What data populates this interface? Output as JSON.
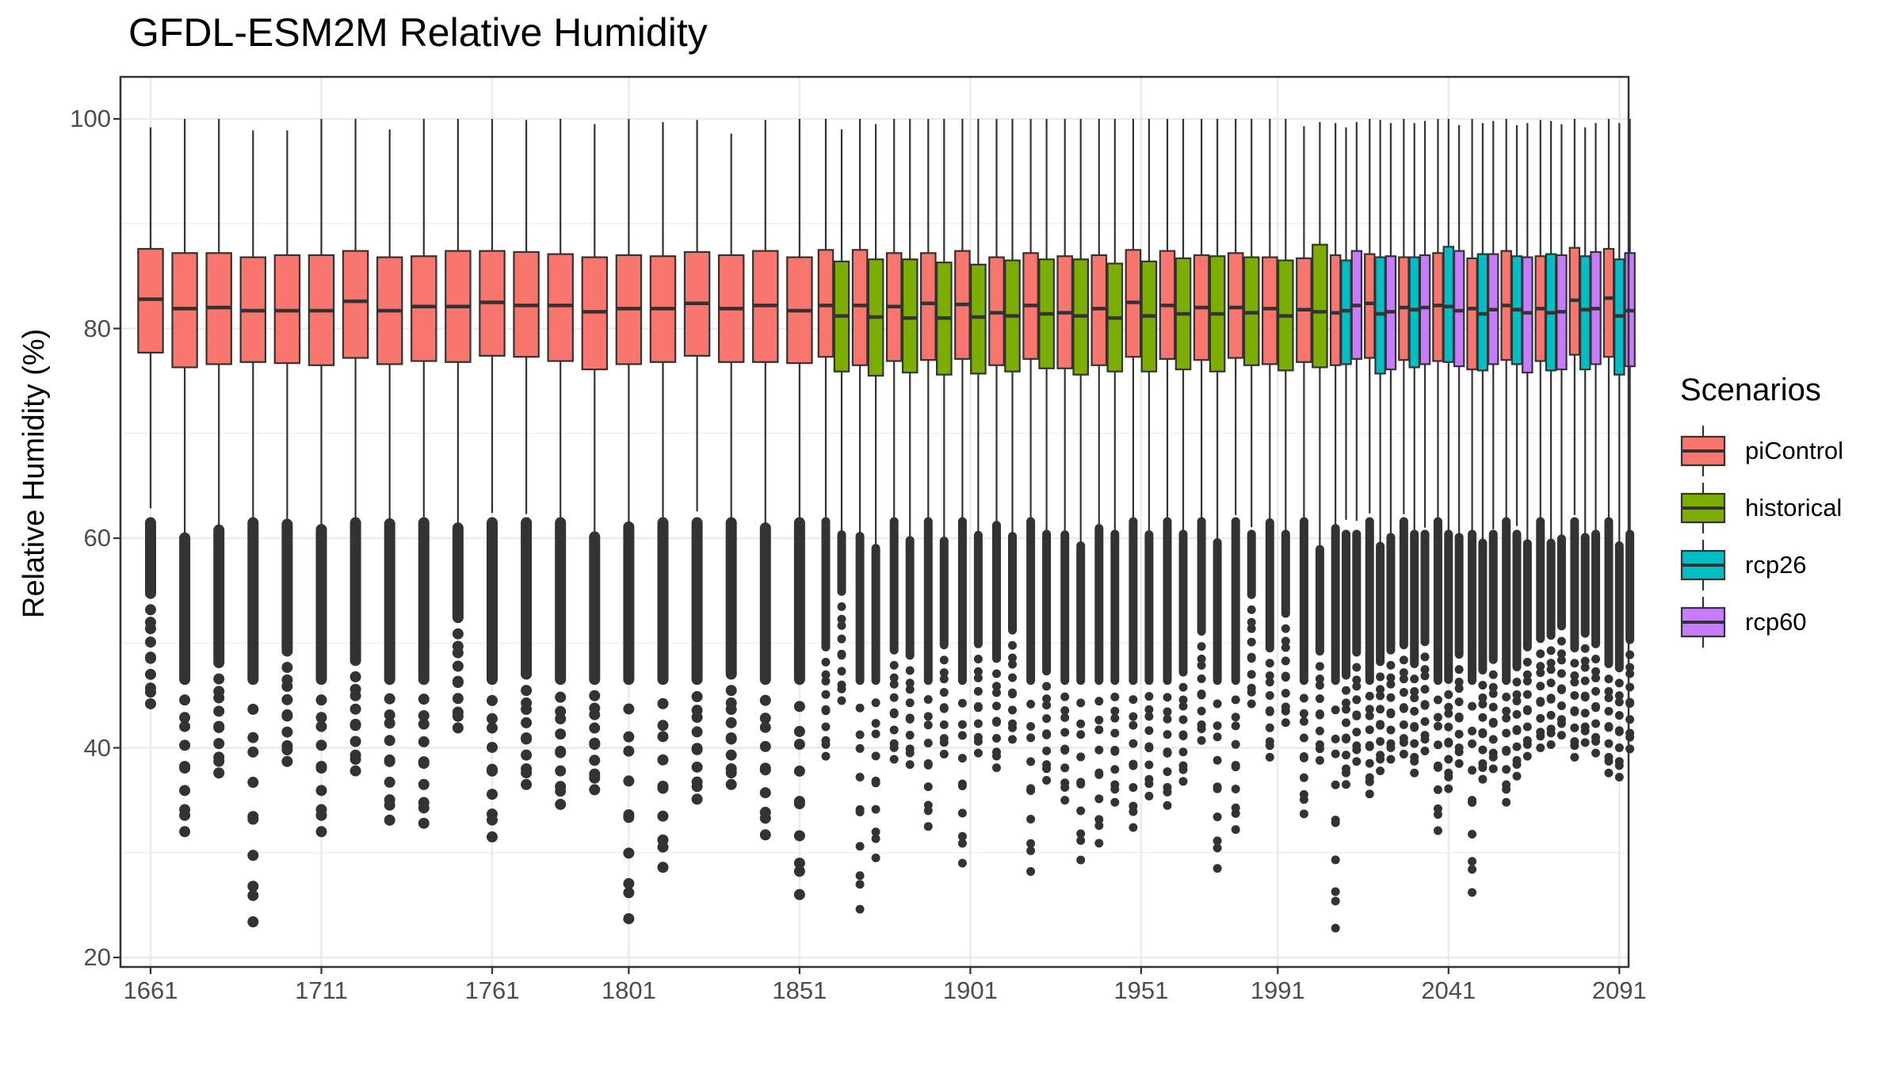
{
  "chart_data": {
    "type": "boxplot",
    "title": "GFDL-ESM2M Relative Humidity",
    "xlabel": "",
    "ylabel": "Relative Humidity (%)",
    "ylim": [
      20,
      100
    ],
    "yticks": [
      20,
      40,
      60,
      80,
      100
    ],
    "xticks": [
      "1661",
      "1711",
      "1761",
      "1801",
      "1851",
      "1901",
      "1951",
      "1991",
      "2041",
      "2091"
    ],
    "grid": true,
    "legend": {
      "title": "Scenarios",
      "position": "right"
    },
    "scenarios": [
      {
        "name": "piControl",
        "color": "#F8766D"
      },
      {
        "name": "historical",
        "color": "#7CAE00"
      },
      {
        "name": "rcp26",
        "color": "#00BFC4"
      },
      {
        "name": "rcp60",
        "color": "#C77CFF"
      }
    ],
    "boxes": [
      {
        "decade": 1661,
        "scenario": "piControl",
        "q1": 77.7,
        "median": 82.8,
        "q3": 87.6,
        "whisker_high": 99.2,
        "outlier_min": 44.2
      },
      {
        "decade": 1671,
        "scenario": "piControl",
        "q1": 76.3,
        "median": 81.9,
        "q3": 87.2,
        "whisker_high": 100.0,
        "outlier_min": 32.0
      },
      {
        "decade": 1681,
        "scenario": "piControl",
        "q1": 76.6,
        "median": 82.0,
        "q3": 87.2,
        "whisker_high": 100.0,
        "outlier_min": 37.6
      },
      {
        "decade": 1691,
        "scenario": "piControl",
        "q1": 76.8,
        "median": 81.7,
        "q3": 86.8,
        "whisker_high": 98.9,
        "outlier_min": 23.4
      },
      {
        "decade": 1701,
        "scenario": "piControl",
        "q1": 76.7,
        "median": 81.7,
        "q3": 87.0,
        "whisker_high": 98.9,
        "outlier_min": 38.7
      },
      {
        "decade": 1711,
        "scenario": "piControl",
        "q1": 76.5,
        "median": 81.7,
        "q3": 87.0,
        "whisker_high": 100.0,
        "outlier_min": 32.0
      },
      {
        "decade": 1721,
        "scenario": "piControl",
        "q1": 77.2,
        "median": 82.6,
        "q3": 87.4,
        "whisker_high": 100.0,
        "outlier_min": 37.8
      },
      {
        "decade": 1731,
        "scenario": "piControl",
        "q1": 76.6,
        "median": 81.7,
        "q3": 86.8,
        "whisker_high": 99.0,
        "outlier_min": 33.1
      },
      {
        "decade": 1741,
        "scenario": "piControl",
        "q1": 76.9,
        "median": 82.1,
        "q3": 86.9,
        "whisker_high": 100.0,
        "outlier_min": 32.8
      },
      {
        "decade": 1751,
        "scenario": "piControl",
        "q1": 76.8,
        "median": 82.1,
        "q3": 87.4,
        "whisker_high": 100.0,
        "outlier_min": 41.9
      },
      {
        "decade": 1761,
        "scenario": "piControl",
        "q1": 77.4,
        "median": 82.5,
        "q3": 87.4,
        "whisker_high": 100.0,
        "outlier_min": 31.5
      },
      {
        "decade": 1771,
        "scenario": "piControl",
        "q1": 77.3,
        "median": 82.2,
        "q3": 87.3,
        "whisker_high": 99.9,
        "outlier_min": 36.5
      },
      {
        "decade": 1781,
        "scenario": "piControl",
        "q1": 76.9,
        "median": 82.2,
        "q3": 87.1,
        "whisker_high": 100.0,
        "outlier_min": 34.6
      },
      {
        "decade": 1791,
        "scenario": "piControl",
        "q1": 76.1,
        "median": 81.6,
        "q3": 86.8,
        "whisker_high": 99.5,
        "outlier_min": 36.0
      },
      {
        "decade": 1801,
        "scenario": "piControl",
        "q1": 76.6,
        "median": 81.9,
        "q3": 87.0,
        "whisker_high": 100.0,
        "outlier_min": 23.7
      },
      {
        "decade": 1811,
        "scenario": "piControl",
        "q1": 76.8,
        "median": 81.9,
        "q3": 86.9,
        "whisker_high": 99.7,
        "outlier_min": 28.6
      },
      {
        "decade": 1821,
        "scenario": "piControl",
        "q1": 77.4,
        "median": 82.4,
        "q3": 87.3,
        "whisker_high": 99.9,
        "outlier_min": 35.1
      },
      {
        "decade": 1831,
        "scenario": "piControl",
        "q1": 76.8,
        "median": 81.9,
        "q3": 87.0,
        "whisker_high": 98.6,
        "outlier_min": 36.5
      },
      {
        "decade": 1841,
        "scenario": "piControl",
        "q1": 76.8,
        "median": 82.2,
        "q3": 87.4,
        "whisker_high": 99.9,
        "outlier_min": 31.7
      },
      {
        "decade": 1851,
        "scenario": "piControl",
        "q1": 76.7,
        "median": 81.7,
        "q3": 86.8,
        "whisker_high": 100.0,
        "outlier_min": 26.0
      },
      {
        "decade": 1861,
        "scenario": "piControl",
        "q1": 77.3,
        "median": 82.2,
        "q3": 87.5,
        "whisker_high": 100.0,
        "outlier_min": 39.2
      },
      {
        "decade": 1861,
        "scenario": "historical",
        "q1": 75.9,
        "median": 81.2,
        "q3": 86.4,
        "whisker_high": 99.0,
        "outlier_min": 44.5
      },
      {
        "decade": 1871,
        "scenario": "piControl",
        "q1": 76.5,
        "median": 82.2,
        "q3": 87.5,
        "whisker_high": 100.0,
        "outlier_min": 24.6
      },
      {
        "decade": 1871,
        "scenario": "historical",
        "q1": 75.5,
        "median": 81.1,
        "q3": 86.6,
        "whisker_high": 99.5,
        "outlier_min": 29.5
      },
      {
        "decade": 1881,
        "scenario": "piControl",
        "q1": 76.9,
        "median": 82.1,
        "q3": 87.2,
        "whisker_high": 100.0,
        "outlier_min": 38.9
      },
      {
        "decade": 1881,
        "scenario": "historical",
        "q1": 75.8,
        "median": 81.0,
        "q3": 86.6,
        "whisker_high": 100.0,
        "outlier_min": 38.4
      },
      {
        "decade": 1891,
        "scenario": "piControl",
        "q1": 77.0,
        "median": 82.4,
        "q3": 87.2,
        "whisker_high": 100.0,
        "outlier_min": 32.5
      },
      {
        "decade": 1891,
        "scenario": "historical",
        "q1": 75.6,
        "median": 81.0,
        "q3": 86.3,
        "whisker_high": 100.0,
        "outlier_min": 39.4
      },
      {
        "decade": 1901,
        "scenario": "piControl",
        "q1": 77.1,
        "median": 82.3,
        "q3": 87.4,
        "whisker_high": 100.0,
        "outlier_min": 29.0
      },
      {
        "decade": 1901,
        "scenario": "historical",
        "q1": 75.7,
        "median": 81.1,
        "q3": 86.1,
        "whisker_high": 100.0,
        "outlier_min": 39.5
      },
      {
        "decade": 1911,
        "scenario": "piControl",
        "q1": 76.5,
        "median": 81.5,
        "q3": 86.8,
        "whisker_high": 100.0,
        "outlier_min": 38.1
      },
      {
        "decade": 1911,
        "scenario": "historical",
        "q1": 75.9,
        "median": 81.2,
        "q3": 86.5,
        "whisker_high": 100.0,
        "outlier_min": 40.8
      },
      {
        "decade": 1921,
        "scenario": "piControl",
        "q1": 77.1,
        "median": 82.2,
        "q3": 87.2,
        "whisker_high": 100.0,
        "outlier_min": 28.2
      },
      {
        "decade": 1921,
        "scenario": "historical",
        "q1": 76.2,
        "median": 81.4,
        "q3": 86.6,
        "whisker_high": 100.0,
        "outlier_min": 36.9
      },
      {
        "decade": 1931,
        "scenario": "piControl",
        "q1": 76.2,
        "median": 81.5,
        "q3": 86.9,
        "whisker_high": 100.0,
        "outlier_min": 35.0
      },
      {
        "decade": 1931,
        "scenario": "historical",
        "q1": 75.6,
        "median": 81.2,
        "q3": 86.6,
        "whisker_high": 100.0,
        "outlier_min": 29.3
      },
      {
        "decade": 1941,
        "scenario": "piControl",
        "q1": 76.5,
        "median": 81.9,
        "q3": 87.0,
        "whisker_high": 100.0,
        "outlier_min": 30.9
      },
      {
        "decade": 1941,
        "scenario": "historical",
        "q1": 75.9,
        "median": 81.0,
        "q3": 86.2,
        "whisker_high": 100.0,
        "outlier_min": 34.8
      },
      {
        "decade": 1951,
        "scenario": "piControl",
        "q1": 77.3,
        "median": 82.5,
        "q3": 87.5,
        "whisker_high": 100.0,
        "outlier_min": 32.4
      },
      {
        "decade": 1951,
        "scenario": "historical",
        "q1": 75.9,
        "median": 81.2,
        "q3": 86.4,
        "whisker_high": 100.0,
        "outlier_min": 35.4
      },
      {
        "decade": 1961,
        "scenario": "piControl",
        "q1": 77.1,
        "median": 82.2,
        "q3": 87.4,
        "whisker_high": 100.0,
        "outlier_min": 34.5
      },
      {
        "decade": 1961,
        "scenario": "historical",
        "q1": 76.1,
        "median": 81.4,
        "q3": 86.7,
        "whisker_high": 100.0,
        "outlier_min": 36.8
      },
      {
        "decade": 1971,
        "scenario": "piControl",
        "q1": 77.0,
        "median": 82.0,
        "q3": 87.0,
        "whisker_high": 100.0,
        "outlier_min": 40.7
      },
      {
        "decade": 1971,
        "scenario": "historical",
        "q1": 75.9,
        "median": 81.4,
        "q3": 86.9,
        "whisker_high": 100.0,
        "outlier_min": 28.5
      },
      {
        "decade": 1981,
        "scenario": "piControl",
        "q1": 77.2,
        "median": 82.0,
        "q3": 87.2,
        "whisker_high": 100.0,
        "outlier_min": 32.2
      },
      {
        "decade": 1981,
        "scenario": "historical",
        "q1": 76.5,
        "median": 81.5,
        "q3": 86.8,
        "whisker_high": 100.0,
        "outlier_min": 44.2
      },
      {
        "decade": 1991,
        "scenario": "piControl",
        "q1": 76.6,
        "median": 81.9,
        "q3": 86.8,
        "whisker_high": 100.0,
        "outlier_min": 39.1
      },
      {
        "decade": 1991,
        "scenario": "historical",
        "q1": 76.0,
        "median": 81.2,
        "q3": 86.5,
        "whisker_high": 100.0,
        "outlier_min": 42.4
      },
      {
        "decade": 2001,
        "scenario": "piControl",
        "q1": 76.8,
        "median": 81.8,
        "q3": 86.7,
        "whisker_high": 99.3,
        "outlier_min": 33.7
      },
      {
        "decade": 2001,
        "scenario": "historical",
        "q1": 76.3,
        "median": 81.6,
        "q3": 88.0,
        "whisker_high": 99.7,
        "outlier_min": 38.8
      },
      {
        "decade": 2011,
        "scenario": "piControl",
        "q1": 76.5,
        "median": 81.5,
        "q3": 87.0,
        "whisker_high": 99.6,
        "outlier_min": 22.8
      },
      {
        "decade": 2011,
        "scenario": "rcp26",
        "q1": 76.6,
        "median": 81.7,
        "q3": 86.5,
        "whisker_high": 99.2,
        "outlier_min": 36.5
      },
      {
        "decade": 2011,
        "scenario": "rcp60",
        "q1": 77.1,
        "median": 82.2,
        "q3": 87.4,
        "whisker_high": 99.7,
        "outlier_min": 38.7
      },
      {
        "decade": 2021,
        "scenario": "piControl",
        "q1": 77.2,
        "median": 82.4,
        "q3": 87.1,
        "whisker_high": 100.0,
        "outlier_min": 35.6
      },
      {
        "decade": 2021,
        "scenario": "rcp26",
        "q1": 75.7,
        "median": 81.4,
        "q3": 86.8,
        "whisker_high": 99.9,
        "outlier_min": 37.8
      },
      {
        "decade": 2021,
        "scenario": "rcp60",
        "q1": 76.1,
        "median": 81.6,
        "q3": 86.9,
        "whisker_high": 99.6,
        "outlier_min": 38.9
      },
      {
        "decade": 2031,
        "scenario": "piControl",
        "q1": 77.0,
        "median": 82.0,
        "q3": 86.8,
        "whisker_high": 100.0,
        "outlier_min": 39.4
      },
      {
        "decade": 2031,
        "scenario": "rcp26",
        "q1": 76.3,
        "median": 81.8,
        "q3": 86.8,
        "whisker_high": 99.6,
        "outlier_min": 37.6
      },
      {
        "decade": 2031,
        "scenario": "rcp60",
        "q1": 76.6,
        "median": 82.0,
        "q3": 87.0,
        "whisker_high": 99.8,
        "outlier_min": 39.7
      },
      {
        "decade": 2041,
        "scenario": "piControl",
        "q1": 76.9,
        "median": 82.2,
        "q3": 87.2,
        "whisker_high": 100.0,
        "outlier_min": 32.1
      },
      {
        "decade": 2041,
        "scenario": "rcp26",
        "q1": 76.8,
        "median": 82.1,
        "q3": 87.8,
        "whisker_high": 100.0,
        "outlier_min": 36.1
      },
      {
        "decade": 2041,
        "scenario": "rcp60",
        "q1": 76.4,
        "median": 81.7,
        "q3": 87.4,
        "whisker_high": 99.4,
        "outlier_min": 38.5
      },
      {
        "decade": 2051,
        "scenario": "piControl",
        "q1": 76.1,
        "median": 81.9,
        "q3": 86.7,
        "whisker_high": 100.0,
        "outlier_min": 26.2
      },
      {
        "decade": 2051,
        "scenario": "rcp26",
        "q1": 76.0,
        "median": 81.4,
        "q3": 87.1,
        "whisker_high": 99.6,
        "outlier_min": 37.0
      },
      {
        "decade": 2051,
        "scenario": "rcp60",
        "q1": 76.6,
        "median": 81.8,
        "q3": 87.1,
        "whisker_high": 99.8,
        "outlier_min": 38.0
      },
      {
        "decade": 2061,
        "scenario": "piControl",
        "q1": 77.0,
        "median": 82.2,
        "q3": 87.4,
        "whisker_high": 100.0,
        "outlier_min": 34.8
      },
      {
        "decade": 2061,
        "scenario": "rcp26",
        "q1": 76.6,
        "median": 81.8,
        "q3": 86.9,
        "whisker_high": 99.4,
        "outlier_min": 37.3
      },
      {
        "decade": 2061,
        "scenario": "rcp60",
        "q1": 75.8,
        "median": 81.5,
        "q3": 86.8,
        "whisker_high": 99.6,
        "outlier_min": 39.2
      },
      {
        "decade": 2071,
        "scenario": "piControl",
        "q1": 76.9,
        "median": 81.9,
        "q3": 86.9,
        "whisker_high": 99.9,
        "outlier_min": 40.0
      },
      {
        "decade": 2071,
        "scenario": "rcp26",
        "q1": 76.0,
        "median": 81.5,
        "q3": 87.1,
        "whisker_high": 99.8,
        "outlier_min": 40.3
      },
      {
        "decade": 2071,
        "scenario": "rcp60",
        "q1": 76.1,
        "median": 81.6,
        "q3": 87.0,
        "whisker_high": 99.5,
        "outlier_min": 41.2
      },
      {
        "decade": 2081,
        "scenario": "piControl",
        "q1": 77.5,
        "median": 82.7,
        "q3": 87.7,
        "whisker_high": 100.0,
        "outlier_min": 39.1
      },
      {
        "decade": 2081,
        "scenario": "rcp26",
        "q1": 76.1,
        "median": 81.8,
        "q3": 86.9,
        "whisker_high": 99.2,
        "outlier_min": 40.5
      },
      {
        "decade": 2081,
        "scenario": "rcp60",
        "q1": 76.6,
        "median": 81.9,
        "q3": 87.3,
        "whisker_high": 99.6,
        "outlier_min": 39.5
      },
      {
        "decade": 2091,
        "scenario": "piControl",
        "q1": 77.3,
        "median": 82.9,
        "q3": 87.6,
        "whisker_high": 100.0,
        "outlier_min": 37.6
      },
      {
        "decade": 2091,
        "scenario": "rcp26",
        "q1": 75.6,
        "median": 81.2,
        "q3": 86.6,
        "whisker_high": 99.6,
        "outlier_min": 37.2
      },
      {
        "decade": 2091,
        "scenario": "rcp60",
        "q1": 76.4,
        "median": 81.7,
        "q3": 87.2,
        "whisker_high": 100.0,
        "outlier_min": 39.9
      }
    ]
  }
}
